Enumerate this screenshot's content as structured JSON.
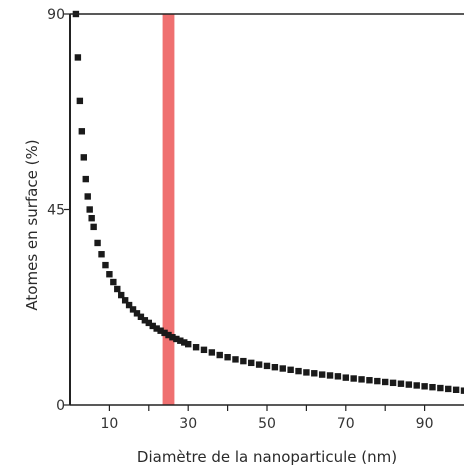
{
  "chart_data": {
    "type": "scatter",
    "title": "",
    "xlabel": "Diamètre de la nanoparticule (nm)",
    "ylabel": "Atomes en surface (%)",
    "xlim": [
      0,
      100
    ],
    "ylim": [
      0,
      90
    ],
    "xticks": [
      10,
      30,
      50,
      70,
      90
    ],
    "xtick_minor": [
      20,
      40,
      60,
      80
    ],
    "yticks": [
      0,
      45,
      90
    ],
    "grid": false,
    "legend": "none",
    "series": [
      {
        "marker": "square",
        "color": "#1a1a1a",
        "x": [
          1.5,
          2,
          2.5,
          3,
          3.5,
          4,
          4.5,
          5,
          5.5,
          6,
          7,
          8,
          9,
          10,
          11,
          12,
          13,
          14,
          15,
          16,
          17,
          18,
          19,
          20,
          21,
          22,
          23,
          24,
          25,
          26,
          27,
          28,
          29,
          30,
          32,
          34,
          36,
          38,
          40,
          42,
          44,
          46,
          48,
          50,
          52,
          54,
          56,
          58,
          60,
          62,
          64,
          66,
          68,
          70,
          72,
          74,
          76,
          78,
          80,
          82,
          84,
          86,
          88,
          90,
          92,
          94,
          96,
          98,
          100
        ],
        "y": [
          90,
          80,
          70,
          63,
          57,
          52,
          48,
          45,
          43,
          41,
          37.3,
          34.7,
          32.2,
          30.1,
          28.3,
          26.7,
          25.3,
          24.1,
          23,
          22,
          21.1,
          20.3,
          19.5,
          18.9,
          18.2,
          17.6,
          17.1,
          16.6,
          16.1,
          15.6,
          15.2,
          14.8,
          14.4,
          14,
          13.3,
          12.7,
          12.1,
          11.5,
          11,
          10.5,
          10.1,
          9.7,
          9.3,
          9,
          8.7,
          8.4,
          8.1,
          7.8,
          7.5,
          7.3,
          7,
          6.8,
          6.6,
          6.3,
          6.1,
          5.9,
          5.7,
          5.5,
          5.3,
          5.1,
          4.9,
          4.7,
          4.5,
          4.3,
          4.1,
          3.9,
          3.7,
          3.5,
          3.3
        ]
      }
    ],
    "annotations": [
      {
        "type": "vertical-band",
        "x": 25,
        "width": 3,
        "color": "#ef7070"
      }
    ]
  }
}
